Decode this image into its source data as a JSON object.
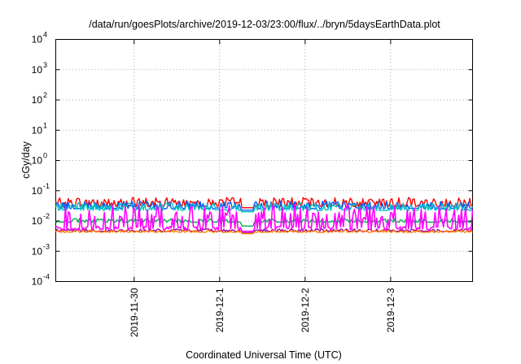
{
  "chart_data": {
    "type": "line",
    "title": "/data/run/goesPlots/archive/2019-12-03/23:00/flux/../bryn/5daysEarthData.plot",
    "xlabel": "Coordinated Universal Time (UTC)",
    "ylabel": "cGy/day",
    "yscale": "log",
    "ylim": [
      0.0001,
      10000
    ],
    "xlim": [
      "2019-11-29T02:00",
      "2019-12-03T23:00"
    ],
    "x_ticks": [
      "2019-11-30",
      "2019-12-1",
      "2019-12-2",
      "2019-12-3"
    ],
    "y_ticks": [
      {
        "base": "10",
        "exp": "-4"
      },
      {
        "base": "10",
        "exp": "-3"
      },
      {
        "base": "10",
        "exp": "-2"
      },
      {
        "base": "10",
        "exp": "-1"
      },
      {
        "base": "10",
        "exp": "0"
      },
      {
        "base": "10",
        "exp": "1"
      },
      {
        "base": "10",
        "exp": "2"
      },
      {
        "base": "10",
        "exp": "3"
      },
      {
        "base": "10",
        "exp": "4"
      }
    ],
    "grid": true,
    "legend": "none",
    "data_gap": [
      "2019-12-01T06:00",
      "2019-12-01T09:30"
    ],
    "series": [
      {
        "color": "#ff0000",
        "baseline": 0.03,
        "spike_to": 0.06,
        "values": [
          0.03,
          0.055,
          0.032,
          0.048,
          0.029,
          0.052,
          0.031,
          0.06,
          0.03,
          0.045,
          0.033,
          0.05,
          0.031,
          0.047,
          0.032,
          0.055,
          0.03,
          0.049,
          0.031,
          0.058
        ]
      },
      {
        "color": "#0060ff",
        "baseline": 0.025,
        "spike_to": 0.045,
        "values": [
          0.025,
          0.042,
          0.024,
          0.04,
          0.026,
          0.045,
          0.025,
          0.041,
          0.024,
          0.044,
          0.026,
          0.04,
          0.025,
          0.043,
          0.024,
          0.041,
          0.025,
          0.045,
          0.026,
          0.042
        ]
      },
      {
        "color": "#00c0c0",
        "baseline": 0.022,
        "spike_to": 0.04,
        "values": [
          0.022,
          0.038,
          0.021,
          0.036,
          0.023,
          0.04,
          0.022,
          0.037,
          0.021,
          0.039,
          0.022,
          0.036,
          0.023,
          0.04,
          0.022,
          0.037,
          0.021,
          0.039,
          0.022,
          0.036
        ]
      },
      {
        "color": "#00b050",
        "baseline": 0.009,
        "spike_to": 0.012,
        "values": [
          0.009,
          0.011,
          0.0085,
          0.0105,
          0.009,
          0.012,
          0.0088,
          0.011,
          0.009,
          0.0115,
          0.0087,
          0.0105,
          0.009,
          0.012,
          0.0088,
          0.011,
          0.009,
          0.0115,
          0.0087,
          0.011
        ]
      },
      {
        "color": "#a000a0",
        "baseline": 0.0045,
        "spike_to": 0.0055,
        "values": [
          0.0045,
          0.005,
          0.0044,
          0.0052,
          0.0046,
          0.005,
          0.0045,
          0.0053,
          0.0044,
          0.005,
          0.0046,
          0.0052,
          0.0045,
          0.005,
          0.0044,
          0.0053,
          0.0045,
          0.005,
          0.0046,
          0.0052
        ]
      },
      {
        "color": "#ff8000",
        "baseline": 0.0042,
        "spike_to": 0.005,
        "values": [
          0.0042,
          0.0047,
          0.0041,
          0.0048,
          0.0043,
          0.0046,
          0.0042,
          0.0049,
          0.0041,
          0.0047,
          0.0043,
          0.0048,
          0.0042,
          0.0046,
          0.0041,
          0.0049,
          0.0042,
          0.0047,
          0.0043,
          0.0048
        ]
      },
      {
        "color": "#ff00ff",
        "baseline": 0.005,
        "spike_to": 0.035,
        "values": [
          0.005,
          0.03,
          0.004,
          0.028,
          0.006,
          0.035,
          0.0045,
          0.025,
          0.005,
          0.032,
          0.004,
          0.03,
          0.006,
          0.027,
          0.0045,
          0.034,
          0.005,
          0.029,
          0.004,
          0.031
        ]
      }
    ]
  }
}
